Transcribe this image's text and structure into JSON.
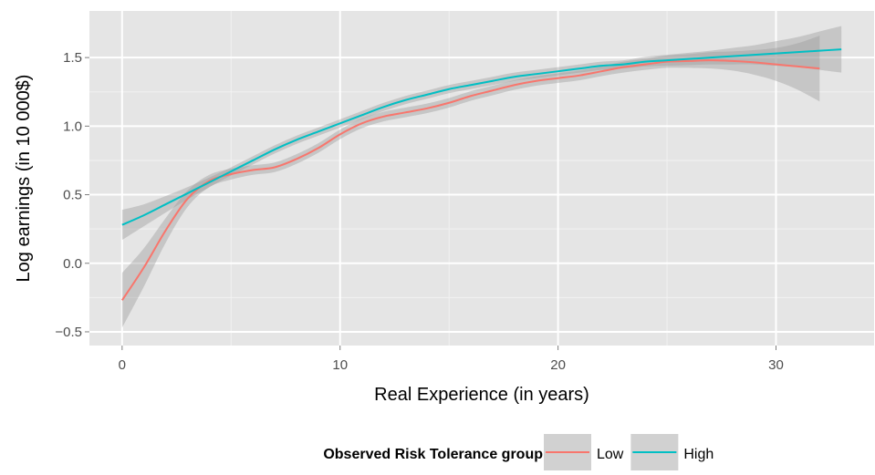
{
  "chart_data": {
    "type": "line",
    "title": "",
    "xlabel": "Real Experience (in years)",
    "ylabel": "Log earnings (in 10 000$)",
    "xlim": [
      -1.5,
      34.5
    ],
    "ylim": [
      -0.6,
      1.84
    ],
    "x_ticks": [
      0,
      10,
      20,
      30
    ],
    "x_tick_labels": [
      "0",
      "10",
      "20",
      "30"
    ],
    "y_ticks": [
      -0.5,
      0.0,
      0.5,
      1.0,
      1.5
    ],
    "y_tick_labels": [
      "−0.5",
      "0.0",
      "0.5",
      "1.0",
      "1.5"
    ],
    "grid": true,
    "background": "#e5e5e5",
    "confidence_band_color": "#999999",
    "legend": {
      "title": "Observed Risk Tolerance group",
      "position": "bottom"
    },
    "series": [
      {
        "name": "Low",
        "color": "#f8766d",
        "x": [
          0,
          1,
          2,
          3,
          4,
          5,
          6,
          7,
          8,
          9,
          10,
          11,
          12,
          13,
          14,
          15,
          16,
          17,
          18,
          19,
          20,
          21,
          22,
          23,
          24,
          25,
          26,
          27,
          28,
          29,
          30,
          31,
          32
        ],
        "y": [
          -0.27,
          -0.03,
          0.24,
          0.47,
          0.6,
          0.65,
          0.68,
          0.7,
          0.76,
          0.84,
          0.94,
          1.02,
          1.07,
          1.1,
          1.13,
          1.17,
          1.22,
          1.26,
          1.3,
          1.33,
          1.35,
          1.37,
          1.4,
          1.43,
          1.45,
          1.47,
          1.475,
          1.48,
          1.475,
          1.465,
          1.45,
          1.435,
          1.42
        ],
        "band": [
          0.2,
          0.14,
          0.09,
          0.06,
          0.045,
          0.04,
          0.035,
          0.035,
          0.035,
          0.035,
          0.035,
          0.035,
          0.035,
          0.035,
          0.035,
          0.035,
          0.035,
          0.035,
          0.035,
          0.035,
          0.035,
          0.035,
          0.035,
          0.04,
          0.04,
          0.045,
          0.05,
          0.06,
          0.07,
          0.09,
          0.12,
          0.17,
          0.24
        ]
      },
      {
        "name": "High",
        "color": "#00bfc4",
        "x": [
          0,
          1,
          2,
          3,
          4,
          5,
          6,
          7,
          8,
          9,
          10,
          11,
          12,
          13,
          14,
          15,
          16,
          17,
          18,
          19,
          20,
          21,
          22,
          23,
          24,
          25,
          26,
          27,
          28,
          29,
          30,
          31,
          32,
          33
        ],
        "y": [
          0.28,
          0.35,
          0.43,
          0.51,
          0.59,
          0.67,
          0.75,
          0.83,
          0.9,
          0.96,
          1.02,
          1.08,
          1.14,
          1.19,
          1.23,
          1.27,
          1.3,
          1.33,
          1.36,
          1.38,
          1.4,
          1.42,
          1.44,
          1.45,
          1.47,
          1.48,
          1.49,
          1.5,
          1.51,
          1.52,
          1.53,
          1.54,
          1.55,
          1.56
        ],
        "band": [
          0.11,
          0.08,
          0.06,
          0.045,
          0.035,
          0.03,
          0.03,
          0.03,
          0.03,
          0.03,
          0.03,
          0.03,
          0.03,
          0.03,
          0.03,
          0.03,
          0.03,
          0.03,
          0.03,
          0.03,
          0.03,
          0.03,
          0.03,
          0.03,
          0.035,
          0.04,
          0.045,
          0.05,
          0.06,
          0.07,
          0.09,
          0.11,
          0.14,
          0.17
        ]
      }
    ]
  }
}
